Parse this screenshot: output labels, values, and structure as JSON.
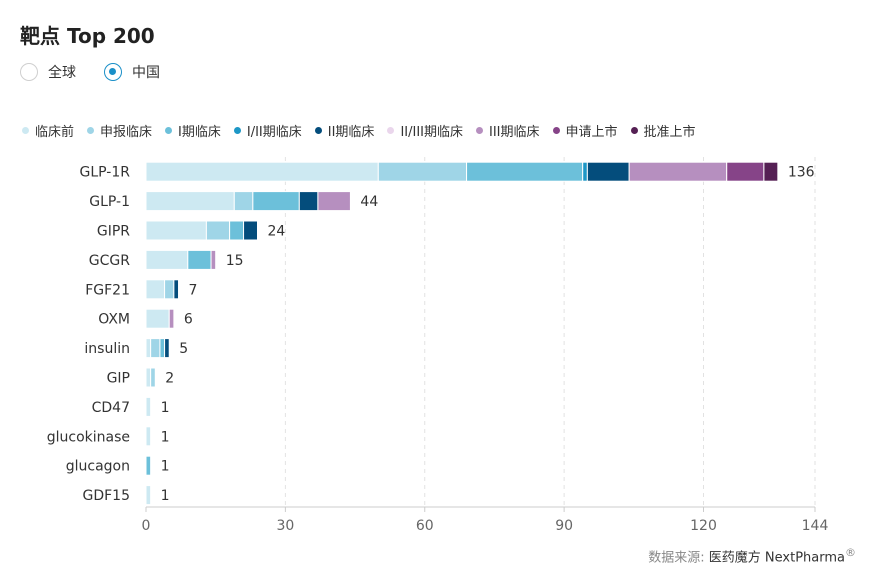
{
  "title": "靶点 Top 200",
  "region_options": [
    {
      "label": "全球",
      "selected": false
    },
    {
      "label": "中国",
      "selected": true
    }
  ],
  "source": {
    "label": "数据来源:",
    "brand": "医药魔方 NextPharma",
    "mark": "®"
  },
  "chart_data": {
    "type": "bar",
    "orientation": "horizontal",
    "stacked": true,
    "categories": [
      "GLP-1R",
      "GLP-1",
      "GIPR",
      "GCGR",
      "FGF21",
      "OXM",
      "insulin",
      "GIP",
      "CD47",
      "glucokinase",
      "glucagon",
      "GDF15"
    ],
    "totals": [
      136,
      44,
      24,
      15,
      7,
      6,
      5,
      2,
      1,
      1,
      1,
      1
    ],
    "series": [
      {
        "name": "临床前",
        "color": "#cde9f2",
        "values": [
          50,
          19,
          13,
          9,
          4,
          5,
          1,
          1,
          1,
          1,
          0,
          1
        ]
      },
      {
        "name": "申报临床",
        "color": "#9fd5e7",
        "values": [
          19,
          4,
          5,
          0,
          2,
          0,
          2,
          1,
          0,
          0,
          0,
          0
        ]
      },
      {
        "name": "I期临床",
        "color": "#6cc0da",
        "values": [
          25,
          10,
          3,
          5,
          0,
          0,
          1,
          0,
          0,
          0,
          1,
          0
        ]
      },
      {
        "name": "I/II期临床",
        "color": "#1d97c6",
        "values": [
          1,
          0,
          0,
          0,
          0,
          0,
          0,
          0,
          0,
          0,
          0,
          0
        ]
      },
      {
        "name": "II期临床",
        "color": "#044d7c",
        "values": [
          9,
          4,
          3,
          0,
          1,
          0,
          1,
          0,
          0,
          0,
          0,
          0
        ]
      },
      {
        "name": "II/III期临床",
        "color": "#ead6ec",
        "values": [
          0,
          0,
          0,
          0,
          0,
          0,
          0,
          0,
          0,
          0,
          0,
          0
        ]
      },
      {
        "name": "III期临床",
        "color": "#b68fbf",
        "values": [
          21,
          7,
          0,
          1,
          0,
          1,
          0,
          0,
          0,
          0,
          0,
          0
        ]
      },
      {
        "name": "申请上市",
        "color": "#864488",
        "values": [
          8,
          0,
          0,
          0,
          0,
          0,
          0,
          0,
          0,
          0,
          0,
          0
        ]
      },
      {
        "name": "批准上市",
        "color": "#552054",
        "values": [
          3,
          0,
          0,
          0,
          0,
          0,
          0,
          0,
          0,
          0,
          0,
          0
        ]
      }
    ],
    "xlim": [
      0,
      144
    ],
    "xticks": [
      0,
      30,
      60,
      90,
      120,
      144
    ],
    "grid": "vertical-dashed",
    "legend_position": "top"
  }
}
